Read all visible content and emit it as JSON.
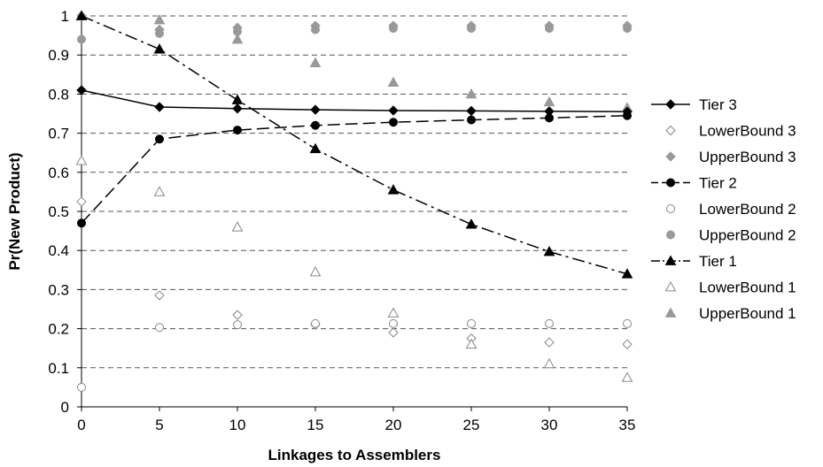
{
  "chart_data": {
    "type": "scatter",
    "title": "",
    "xlabel": "Linkages to Assemblers",
    "ylabel": "Pr(New Product)",
    "x": [
      0,
      5,
      10,
      15,
      20,
      25,
      30,
      35
    ],
    "xlim": [
      0,
      35
    ],
    "ylim": [
      0,
      1
    ],
    "xticks": [
      "0",
      "5",
      "10",
      "15",
      "20",
      "25",
      "30",
      "35"
    ],
    "yticks": [
      "0",
      "0.1",
      "0.2",
      "0.3",
      "0.4",
      "0.5",
      "0.6",
      "0.7",
      "0.8",
      "0.9",
      "1"
    ],
    "grid": "horizontal dashed",
    "legend_position": "right",
    "series": [
      {
        "name": "Tier 3",
        "values": [
          0.81,
          0.767,
          0.763,
          0.76,
          0.758,
          0.757,
          0.756,
          0.755
        ],
        "marker": "diamond",
        "filled": true,
        "line": "solid",
        "color": "#000000"
      },
      {
        "name": "LowerBound 3",
        "values": [
          0.525,
          0.285,
          0.235,
          0.21,
          0.19,
          0.175,
          0.165,
          0.16
        ],
        "marker": "diamond",
        "filled": false,
        "line": "none",
        "color": "#888888"
      },
      {
        "name": "UpperBound 3",
        "values": [
          1.0,
          0.965,
          0.97,
          0.975,
          0.975,
          0.975,
          0.975,
          0.975
        ],
        "marker": "diamond",
        "filled": true,
        "line": "none",
        "color": "#999999"
      },
      {
        "name": "Tier 2",
        "values": [
          0.47,
          0.685,
          0.708,
          0.72,
          0.728,
          0.734,
          0.739,
          0.745
        ],
        "marker": "circle",
        "filled": true,
        "line": "dashed",
        "color": "#000000"
      },
      {
        "name": "LowerBound 2",
        "values": [
          0.05,
          0.203,
          0.21,
          0.213,
          0.213,
          0.213,
          0.213,
          0.213
        ],
        "marker": "circle",
        "filled": false,
        "line": "none",
        "color": "#888888"
      },
      {
        "name": "UpperBound 2",
        "values": [
          0.94,
          0.955,
          0.96,
          0.965,
          0.968,
          0.968,
          0.968,
          0.968
        ],
        "marker": "circle",
        "filled": true,
        "line": "none",
        "color": "#999999"
      },
      {
        "name": "Tier 1",
        "values": [
          1.0,
          0.915,
          0.785,
          0.66,
          0.555,
          0.467,
          0.397,
          0.34
        ],
        "marker": "triangle",
        "filled": true,
        "line": "dashdot",
        "color": "#000000"
      },
      {
        "name": "LowerBound 1",
        "values": [
          0.63,
          0.55,
          0.46,
          0.345,
          0.24,
          0.16,
          0.11,
          0.075
        ],
        "marker": "triangle",
        "filled": false,
        "line": "none",
        "color": "#888888"
      },
      {
        "name": "UpperBound 1",
        "values": [
          1.0,
          0.99,
          0.94,
          0.88,
          0.83,
          0.8,
          0.78,
          0.765
        ],
        "marker": "triangle",
        "filled": true,
        "line": "none",
        "color": "#999999"
      }
    ]
  }
}
